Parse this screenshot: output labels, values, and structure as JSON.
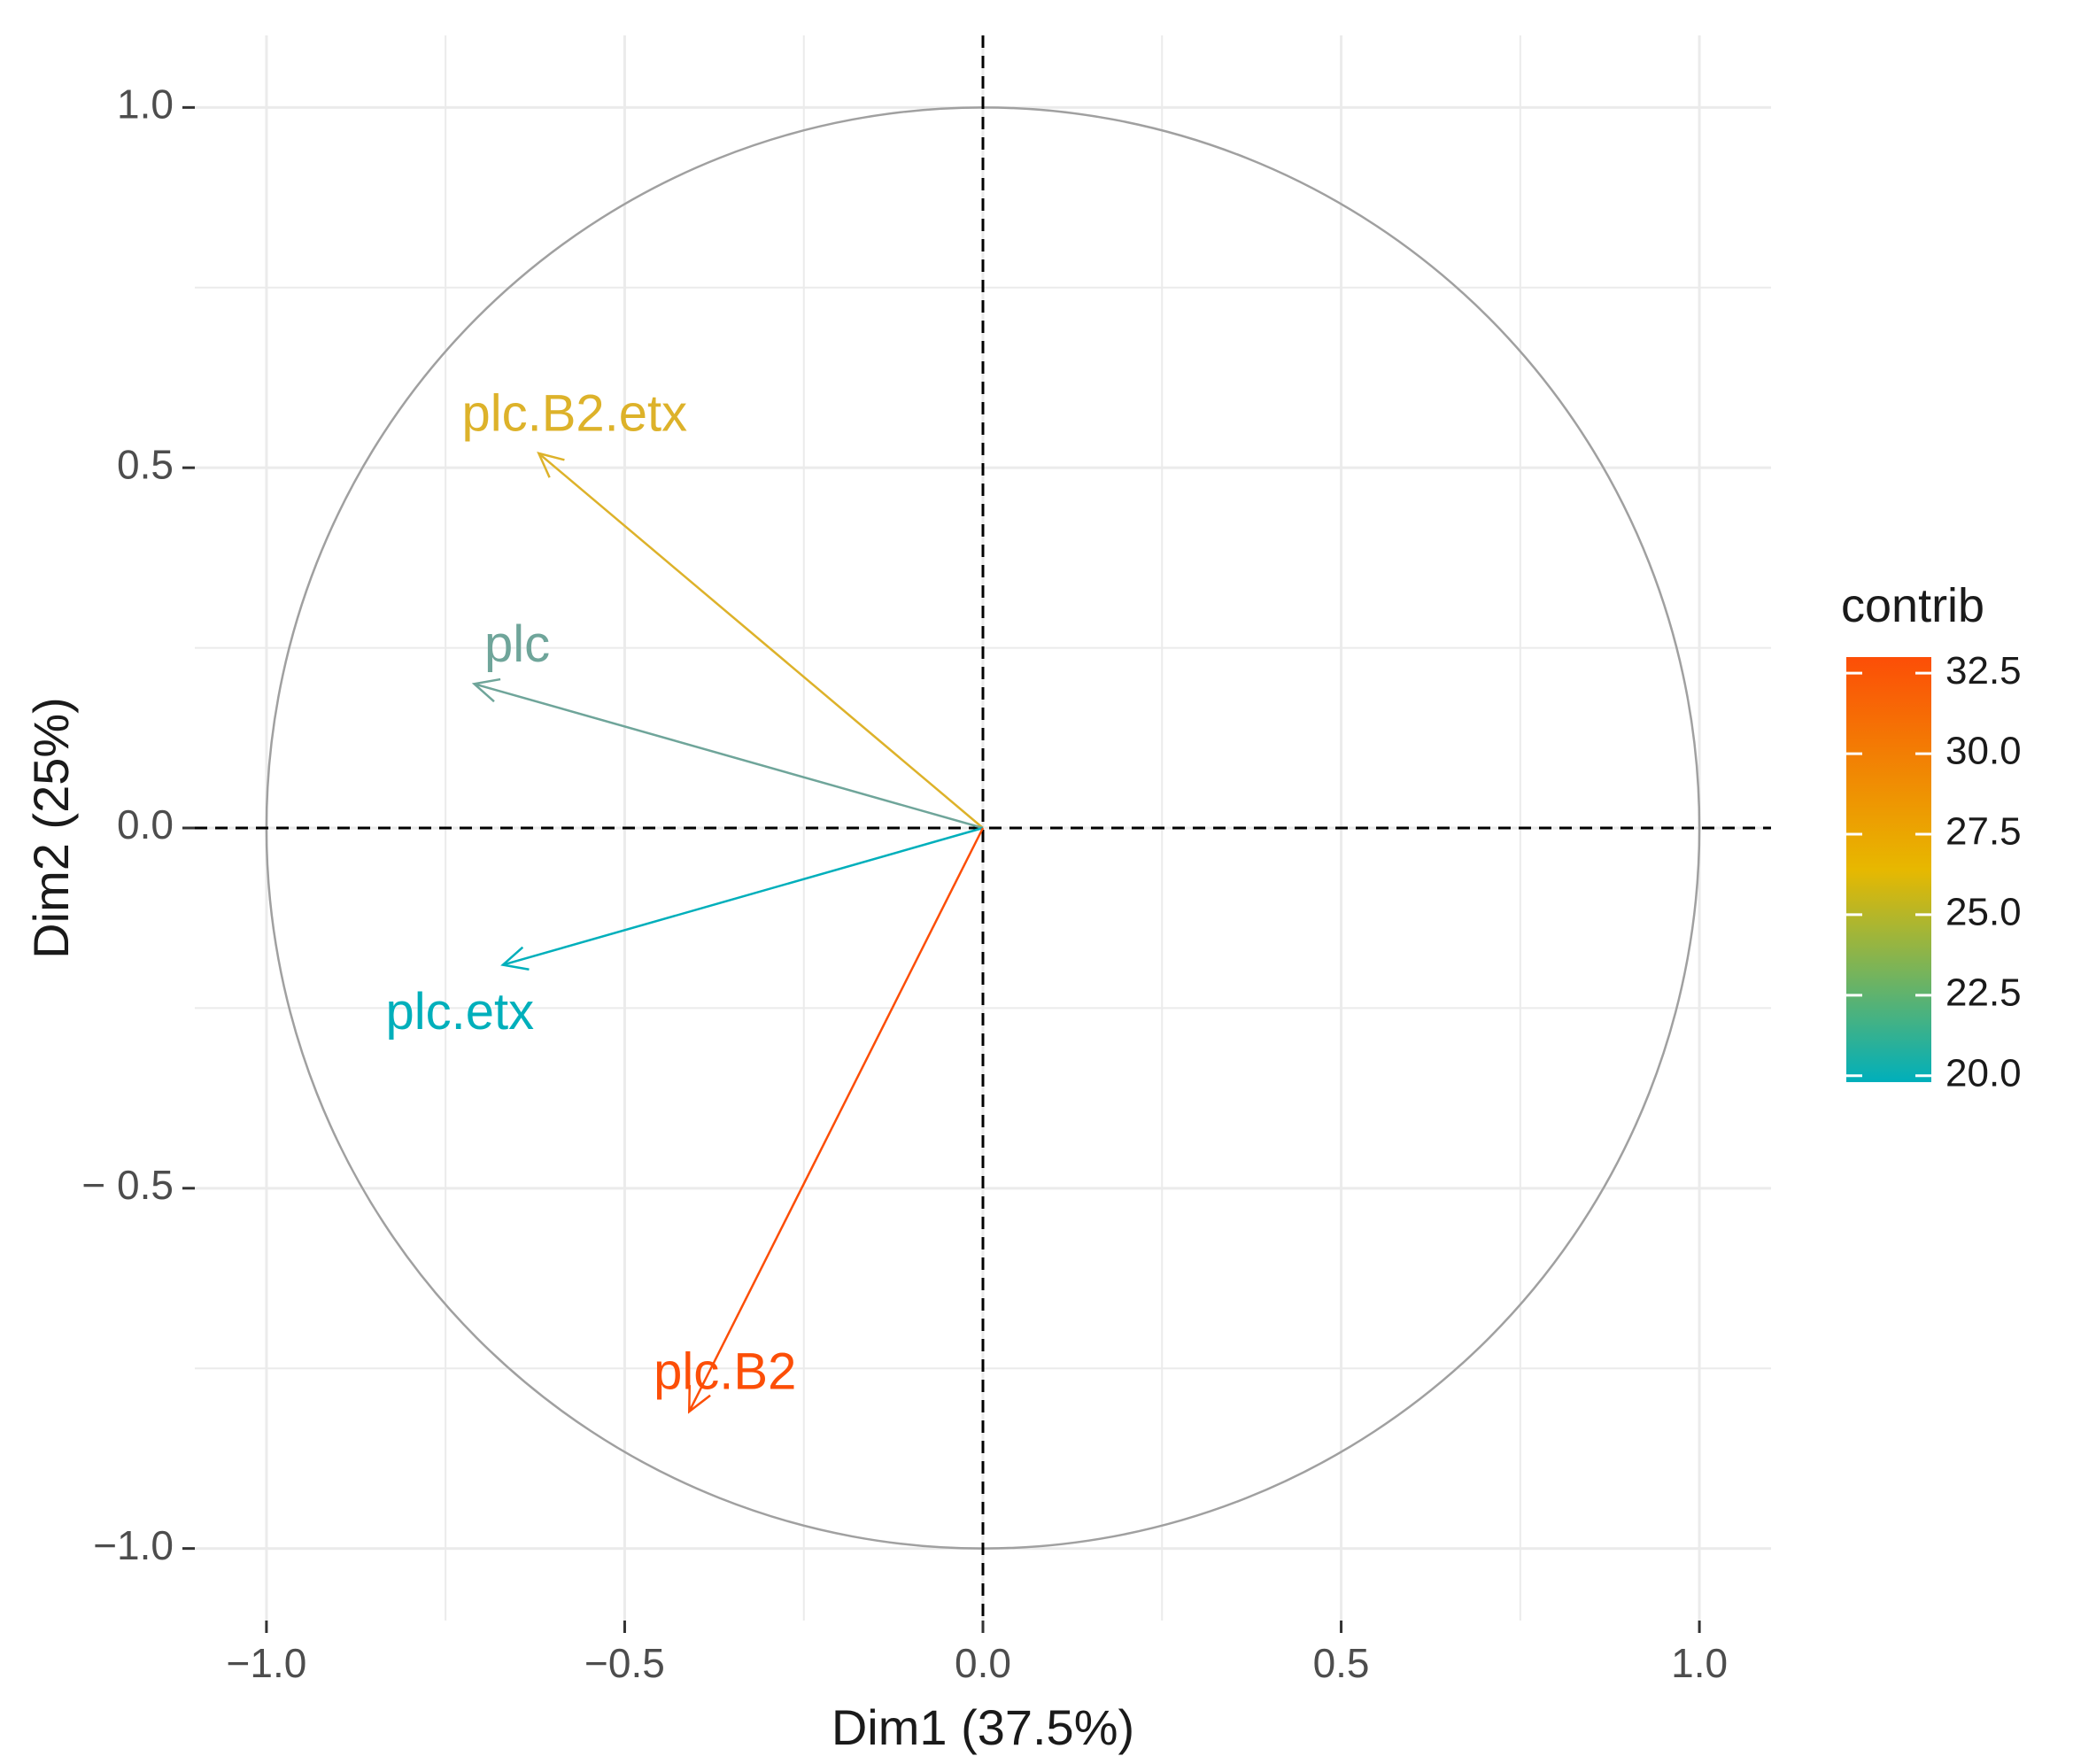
{
  "chart_data": {
    "type": "scatter",
    "subtype": "pca-correlation-circle",
    "title": "",
    "xlabel": "Dim1 (37.5%)",
    "ylabel": "Dim2 (25%)",
    "xlim": [
      -1.1,
      1.1
    ],
    "ylim": [
      -1.1,
      1.1
    ],
    "grid": true,
    "x_ticks": [
      -1.0,
      -0.5,
      0.0,
      0.5,
      1.0
    ],
    "y_ticks": [
      -1.0,
      -0.5,
      0.0,
      0.5,
      1.0
    ],
    "x_tick_labels": [
      "−1.0",
      "−0.5",
      "0.0",
      "0.5",
      "1.0"
    ],
    "y_tick_labels": [
      "−1.0",
      "− 0.5",
      "0.0",
      "0.5",
      "1.0"
    ],
    "variables": [
      {
        "name": "plc.B2.etx",
        "x": -0.62,
        "y": 0.52,
        "contrib": 26.0,
        "color": "#DDB22A",
        "label_x": -0.57,
        "label_y": 0.57
      },
      {
        "name": "plc",
        "x": -0.71,
        "y": 0.2,
        "contrib": 21.8,
        "color": "#6FA59A",
        "label_x": -0.65,
        "label_y": 0.25
      },
      {
        "name": "plc.etx",
        "x": -0.67,
        "y": -0.19,
        "contrib": 20.0,
        "color": "#00AFBB",
        "label_x": -0.73,
        "label_y": -0.26
      },
      {
        "name": "plc.B2",
        "x": -0.41,
        "y": -0.81,
        "contrib": 32.2,
        "color": "#FC4E07",
        "label_x": -0.36,
        "label_y": -0.76
      }
    ],
    "legend": {
      "title": "contrib",
      "position": "right",
      "min": 19.8,
      "max": 33.0,
      "ticks": [
        20.0,
        22.5,
        25.0,
        27.5,
        30.0,
        32.5
      ],
      "tick_labels": [
        "20.0",
        "22.5",
        "25.0",
        "27.5",
        "30.0",
        "32.5"
      ],
      "gradient": [
        "#00AFBB",
        "#E7B800",
        "#FC4E07"
      ]
    },
    "circle_color": "#A0A0A0",
    "grid_color": "#EBEBEB"
  }
}
